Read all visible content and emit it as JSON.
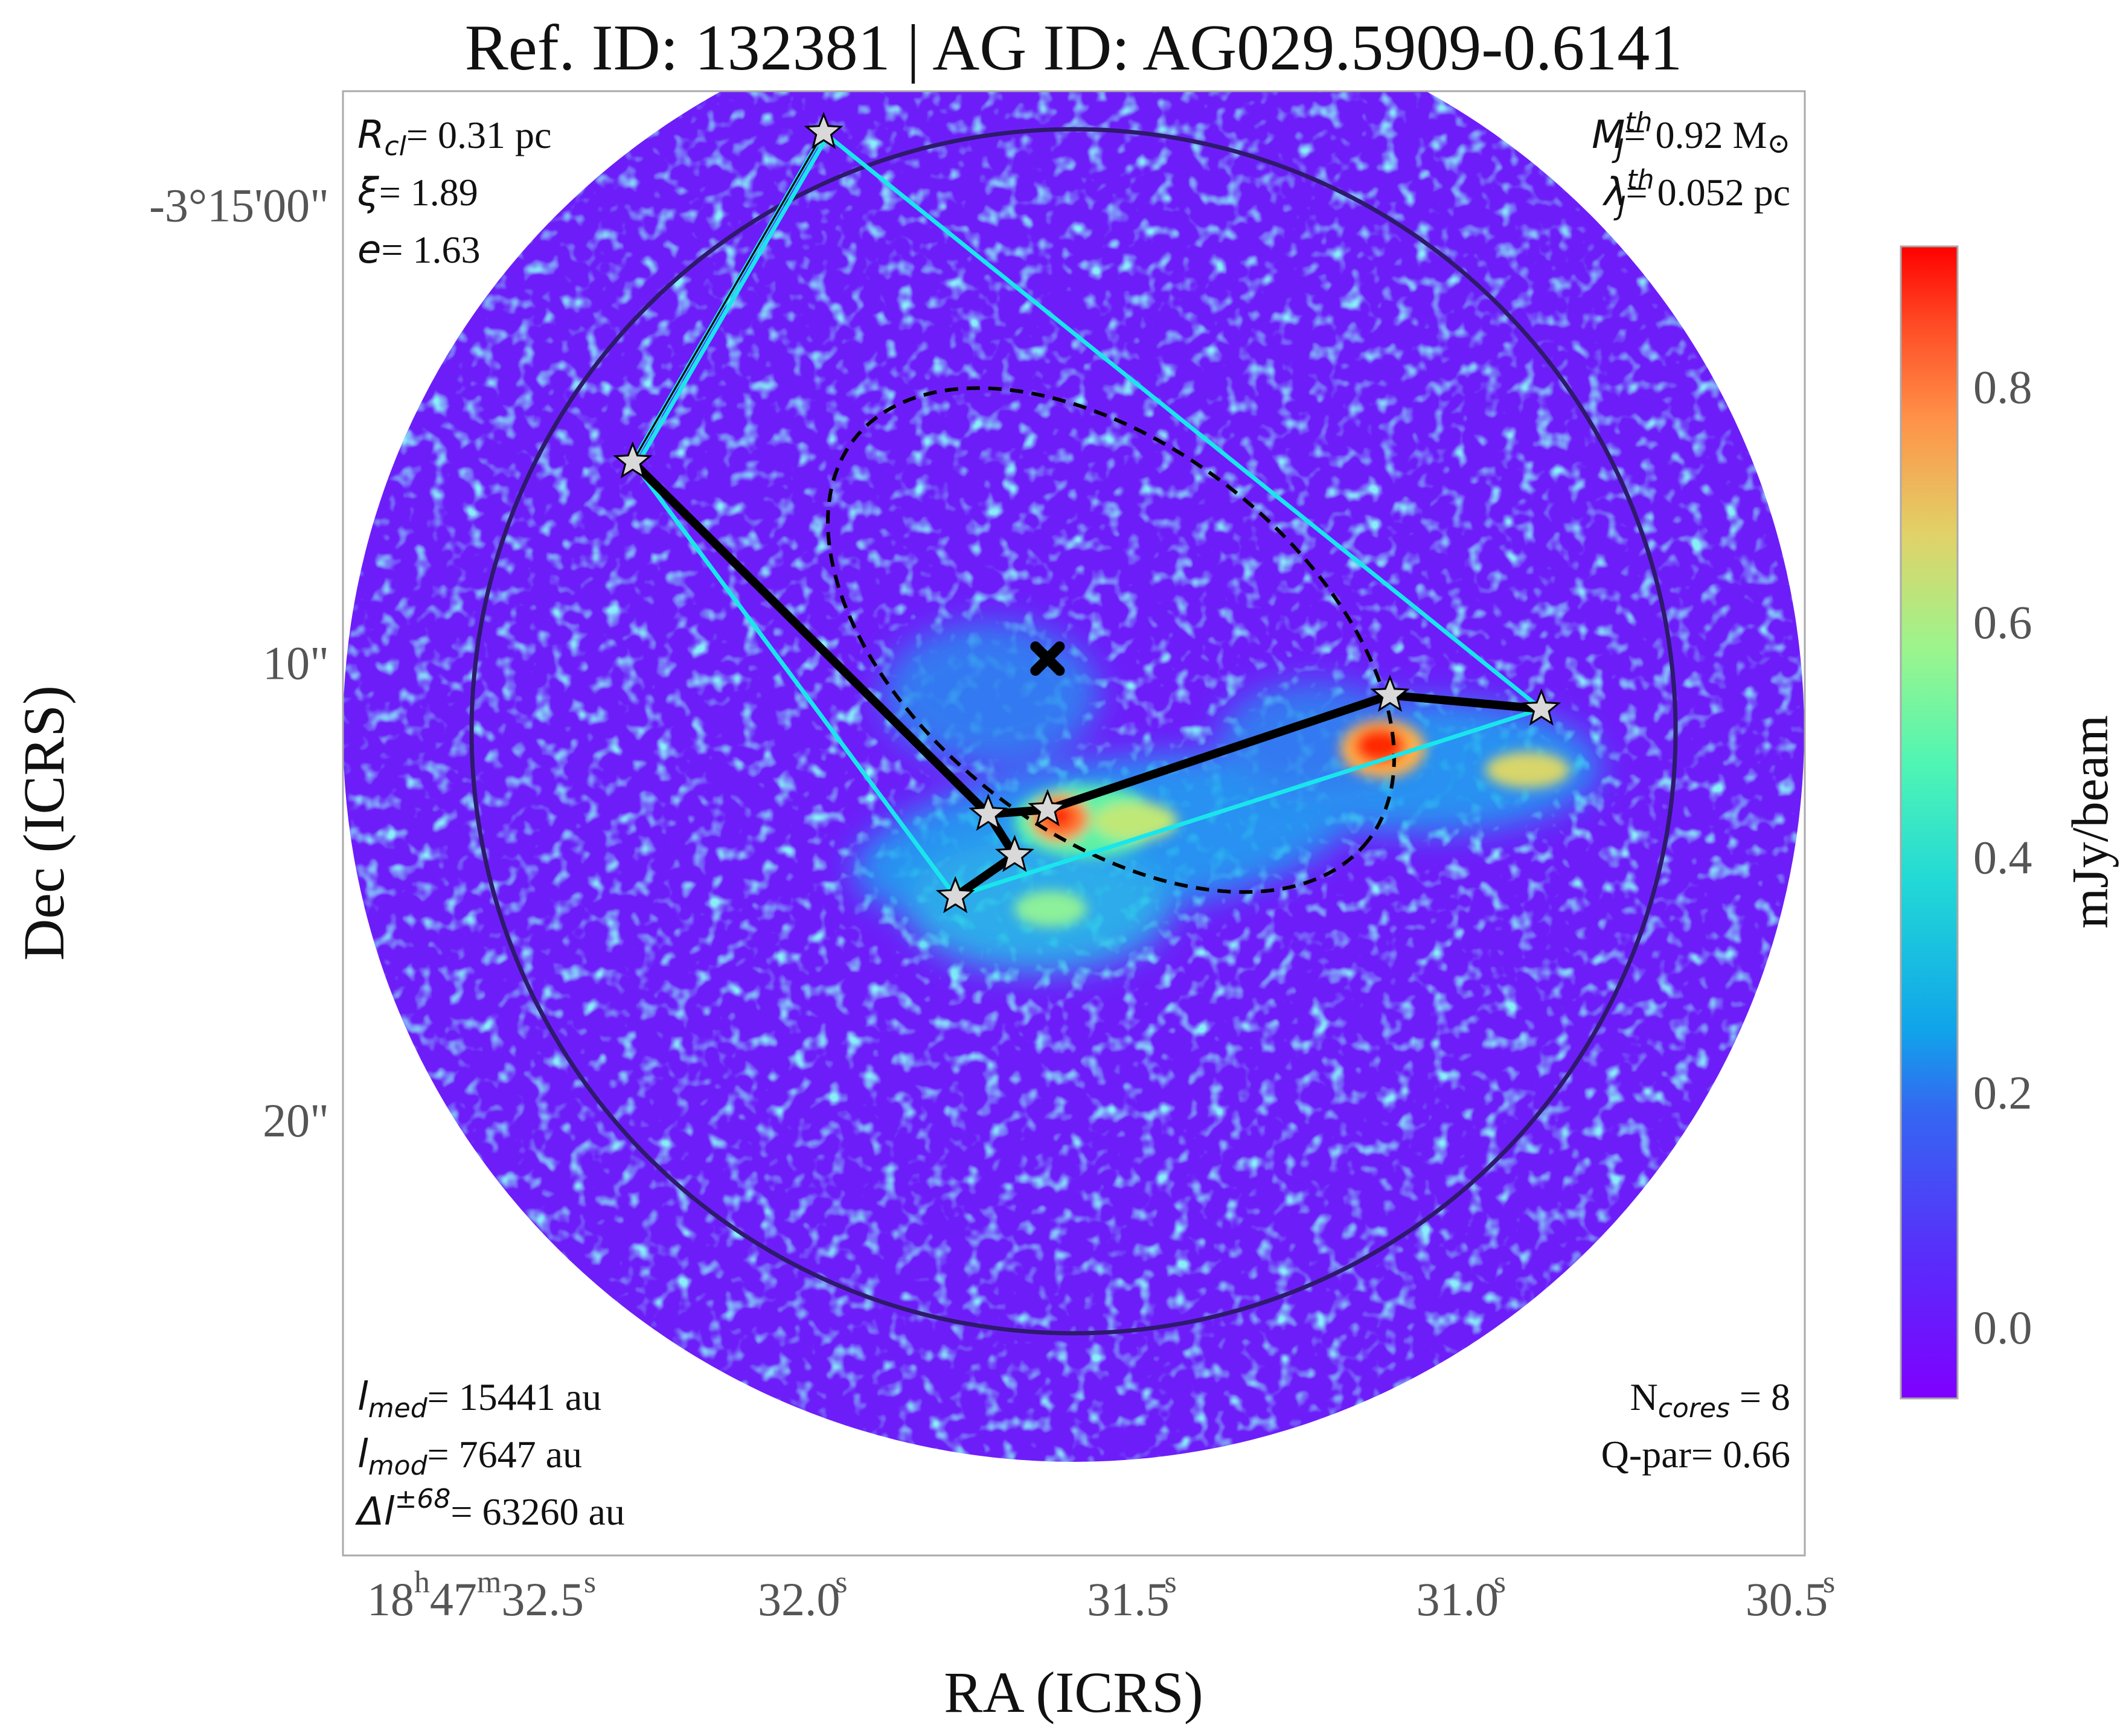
{
  "title": "Ref. ID: 132381 | AG ID: AG029.5909-0.6141",
  "chart_data": {
    "type": "heatmap",
    "title": "Ref. ID: 132381 | AG ID: AG029.5909-0.6141",
    "xlabel": "RA (ICRS)",
    "ylabel": "Dec (ICRS)",
    "x_ticks": [
      {
        "h": "18",
        "m": "47",
        "s": "32.5",
        "frac_sup": "s",
        "value_s": 32.5
      },
      {
        "s": "32.0",
        "value_s": 32.0
      },
      {
        "s": "31.5",
        "value_s": 31.5
      },
      {
        "s": "31.0",
        "value_s": 31.0
      },
      {
        "s": "30.5",
        "value_s": 30.5
      }
    ],
    "x_tick_text": [
      "32.0",
      "31.5",
      "31.0",
      "30.5"
    ],
    "x_first_tick": {
      "h": "18",
      "h_sup": "h",
      "m": "47",
      "m_sup": "m",
      "s": "32.5",
      "s_sup": "s"
    },
    "y_ticks": [
      "-3°15'00\"",
      "10\"",
      "20\""
    ],
    "y_tick_values_arcsec": [
      0,
      10,
      20
    ],
    "xlim_ra_s": [
      32.72,
      30.5
    ],
    "ylim_dec_arcsec_offset": [
      -2.5,
      29.5
    ],
    "colorbar": {
      "label": "mJy/beam",
      "colormap": "rainbow",
      "range": [
        -0.06,
        0.92
      ],
      "ticks": [
        "0.0",
        "0.2",
        "0.4",
        "0.6",
        "0.8"
      ],
      "tick_values": [
        0.0,
        0.2,
        0.4,
        0.6,
        0.8
      ]
    },
    "cores": [
      {
        "ra_s": 31.99,
        "dec_off": -1.6
      },
      {
        "ra_s": 32.28,
        "dec_off": 5.6
      },
      {
        "ra_s": 31.74,
        "dec_off": 13.3
      },
      {
        "ra_s": 31.65,
        "dec_off": 13.2
      },
      {
        "ra_s": 31.7,
        "dec_off": 14.2
      },
      {
        "ra_s": 31.79,
        "dec_off": 15.1
      },
      {
        "ra_s": 31.13,
        "dec_off": 10.7
      },
      {
        "ra_s": 30.9,
        "dec_off": 11.0
      }
    ],
    "mst_edges": [
      [
        1,
        2
      ],
      [
        2,
        3
      ],
      [
        3,
        6
      ],
      [
        6,
        7
      ],
      [
        2,
        4
      ],
      [
        4,
        5
      ]
    ],
    "hull_order": [
      0,
      7,
      5,
      1
    ],
    "center_marker": {
      "ra_s": 31.65,
      "dec_off": 9.9
    },
    "clump_circle": {
      "ra_s": 31.65,
      "dec_off": 10.0,
      "radius_arcsec": 13.5
    },
    "fit_ellipse": {
      "ra_s": 31.63,
      "dec_off": 8.4
    },
    "colors": {
      "hull": "#19e6ec",
      "mst": "#000000",
      "circle": "#2d1a6b",
      "star_fill": "#d9d9d9",
      "frame": "#aaaaaa"
    }
  },
  "annotations": {
    "r_cl": {
      "sym": "R",
      "sub": "cl",
      "value": "= 0.31 pc"
    },
    "xi": {
      "sym": "ξ",
      "value": "= 1.89"
    },
    "e": {
      "sym": "e",
      "value": "= 1.63"
    },
    "mj": {
      "sym": "M",
      "sub": "J",
      "sup": "th",
      "value": "= 0.92 M",
      "unit_sym": "⊙"
    },
    "lambdaj": {
      "sym": "λ",
      "sub": "J",
      "sup": "th",
      "value": "= 0.052 pc"
    },
    "lmed": {
      "sym": "l",
      "sub": "med",
      "value": "= 15441 au"
    },
    "lmod": {
      "sym": "l",
      "sub": "mod",
      "value": "= 7647 au"
    },
    "dl": {
      "sym": "Δl",
      "sup": "±68",
      "value": "= 63260 au"
    },
    "ncores": {
      "label": "N",
      "sub": "cores",
      "value": " = 8"
    },
    "qpar": {
      "text": "Q-par= 0.66"
    }
  }
}
